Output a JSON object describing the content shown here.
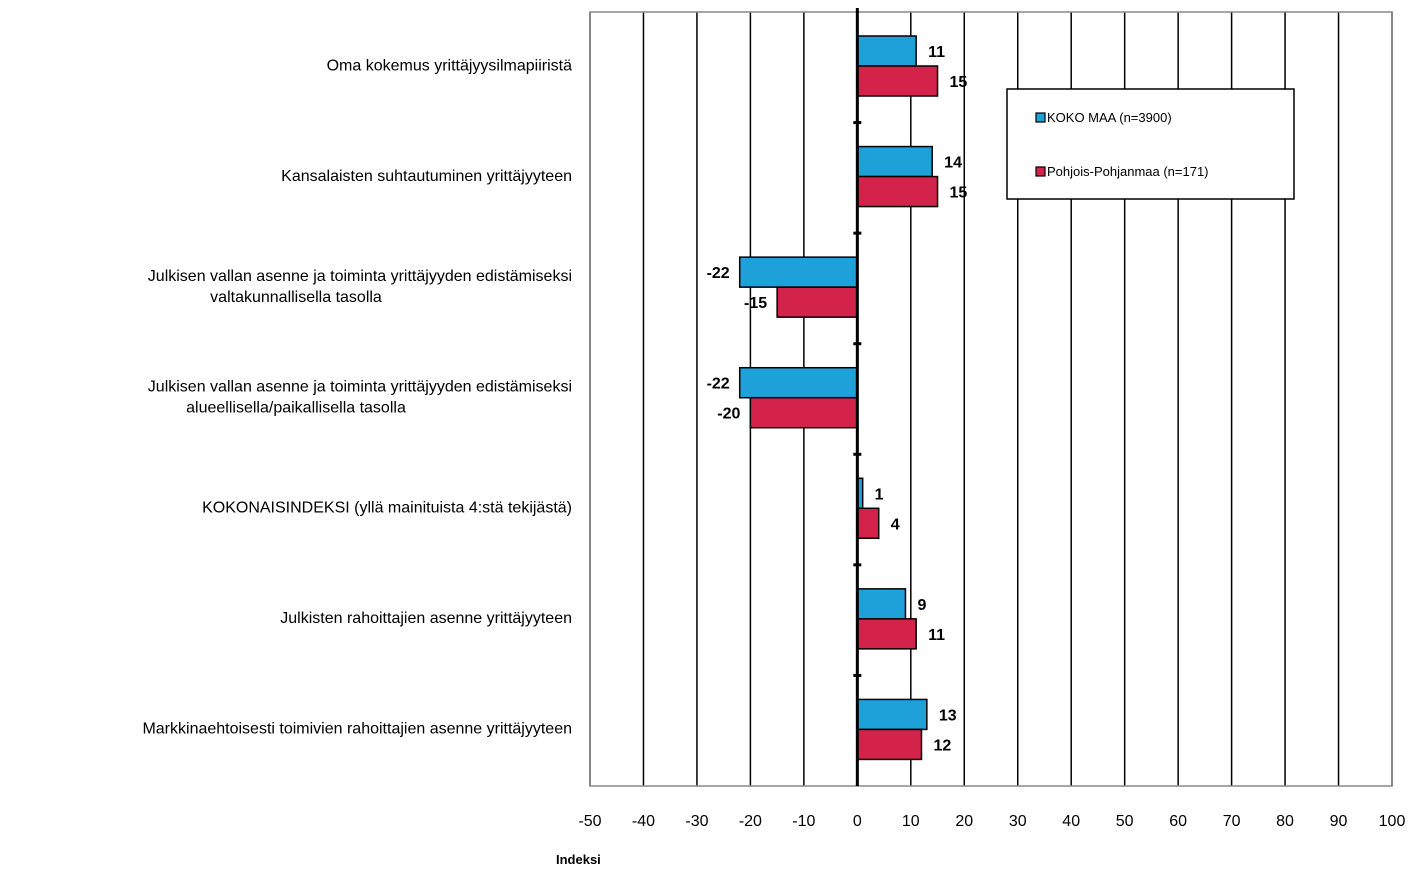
{
  "chart_data": {
    "type": "bar",
    "orientation": "horizontal",
    "categories": [
      [
        "Oma kokemus yrittäjyysilmapiiristä"
      ],
      [
        "Kansalaisten suhtautuminen yrittäjyyteen"
      ],
      [
        "Julkisen vallan asenne ja toiminta yrittäjyyden edistämiseksi",
        "valtakunnallisella tasolla"
      ],
      [
        "Julkisen vallan asenne ja toiminta yrittäjyyden edistämiseksi",
        "alueellisella/paikallisella  tasolla"
      ],
      [
        "KOKONAISINDEKSI (yllä mainituista 4:stä tekijästä)"
      ],
      [
        "Julkisten rahoittajien asenne yrittäjyyteen"
      ],
      [
        "Markkinaehtoisesti toimivien rahoittajien asenne yrittäjyyteen"
      ]
    ],
    "series": [
      {
        "name": "KOKO MAA (n=3900)",
        "color": "#1ea0d8",
        "values": [
          11,
          14,
          -22,
          -22,
          1,
          9,
          13
        ]
      },
      {
        "name": "Pohjois-Pohjanmaa (n=171)",
        "color": "#d4234a",
        "values": [
          15,
          15,
          -15,
          -20,
          4,
          11,
          12
        ]
      }
    ],
    "xlim": [
      -50,
      100
    ],
    "xticks": [
      -50,
      -40,
      -30,
      -20,
      -10,
      0,
      10,
      20,
      30,
      40,
      50,
      60,
      70,
      80,
      90,
      100
    ],
    "xlabel": "Indeksi",
    "ylabel": "",
    "title": "",
    "grid": true,
    "legend_position": "top-right"
  }
}
